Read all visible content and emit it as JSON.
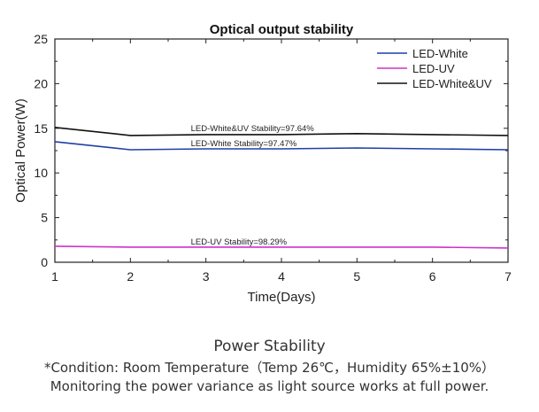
{
  "chart_data": {
    "type": "line",
    "title": "Optical output stability",
    "xlabel": "Time(Days)",
    "ylabel": "Optical Power(W)",
    "xlim": [
      1,
      7
    ],
    "ylim": [
      0,
      25
    ],
    "xticks": [
      1,
      2,
      3,
      4,
      5,
      6,
      7
    ],
    "yticks": [
      0,
      5,
      10,
      15,
      20,
      25
    ],
    "grid": false,
    "legend_position": "top-right",
    "x": [
      1,
      2,
      3,
      4,
      5,
      6,
      7
    ],
    "series": [
      {
        "name": "LED-White",
        "color": "#1f3fa8",
        "values": [
          13.5,
          12.6,
          12.7,
          12.7,
          12.8,
          12.7,
          12.6
        ]
      },
      {
        "name": "LED-UV",
        "color": "#cc33cc",
        "values": [
          1.8,
          1.7,
          1.7,
          1.7,
          1.7,
          1.7,
          1.6
        ]
      },
      {
        "name": "LED-White&UV",
        "color": "#111111",
        "values": [
          15.1,
          14.2,
          14.3,
          14.3,
          14.4,
          14.3,
          14.2
        ]
      }
    ],
    "annotations": [
      {
        "text": "LED-White&UV Stability=97.64%",
        "x": 2.8,
        "y": 14.9
      },
      {
        "text": "LED-White Stability=97.47%",
        "x": 2.8,
        "y": 13.2
      },
      {
        "text": "LED-UV Stability=98.29%",
        "x": 2.8,
        "y": 2.2
      }
    ]
  },
  "caption": {
    "title": "Power Stability",
    "line1": "*Condition: Room Temperature（Temp 26℃，Humidity 65%±10%）",
    "line2": "Monitoring the power variance as light source works at full power."
  }
}
